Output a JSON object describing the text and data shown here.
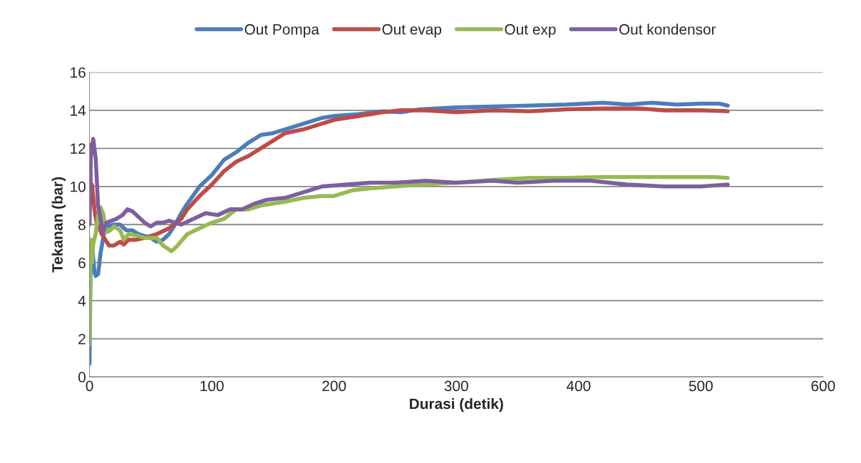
{
  "chart_data": {
    "type": "line",
    "xlabel": "Durasi (detik)",
    "ylabel": "Tekanan (bar)",
    "xlim": [
      0,
      600
    ],
    "xticks": [
      0,
      100,
      200,
      300,
      400,
      500,
      600
    ],
    "ylim": [
      0,
      16
    ],
    "yticks": [
      0,
      2,
      4,
      6,
      8,
      10,
      12,
      14,
      16
    ],
    "grid": "y",
    "legend": "top",
    "marker": "none",
    "line_style": "solid",
    "series": [
      {
        "name": "Out Pompa",
        "color": "#4a7ebb",
        "x": [
          0,
          1,
          2,
          4,
          5,
          7,
          9,
          12,
          15,
          20,
          25,
          30,
          35,
          40,
          45,
          50,
          55,
          60,
          65,
          70,
          75,
          80,
          90,
          100,
          110,
          120,
          130,
          140,
          150,
          160,
          175,
          190,
          200,
          220,
          240,
          255,
          270,
          300,
          330,
          360,
          390,
          420,
          440,
          460,
          480,
          500,
          515,
          522
        ],
        "values": [
          0.7,
          6.7,
          7.0,
          5.5,
          5.3,
          5.4,
          6.5,
          7.6,
          7.9,
          8.0,
          8.0,
          7.7,
          7.7,
          7.5,
          7.4,
          7.3,
          7.1,
          7.2,
          7.5,
          8.0,
          8.6,
          9.1,
          10.0,
          10.6,
          11.4,
          11.8,
          12.3,
          12.7,
          12.8,
          13.0,
          13.3,
          13.6,
          13.7,
          13.8,
          13.95,
          13.9,
          14.05,
          14.15,
          14.2,
          14.25,
          14.3,
          14.4,
          14.3,
          14.4,
          14.3,
          14.35,
          14.35,
          14.25
        ]
      },
      {
        "name": "Out evap",
        "color": "#be4b48",
        "x": [
          0,
          1,
          2,
          4,
          6,
          8,
          10,
          13,
          16,
          20,
          25,
          28,
          32,
          38,
          45,
          55,
          65,
          75,
          80,
          90,
          100,
          110,
          120,
          130,
          140,
          150,
          160,
          175,
          190,
          200,
          220,
          240,
          255,
          275,
          300,
          330,
          360,
          390,
          420,
          450,
          470,
          500,
          522
        ],
        "values": [
          12.2,
          10.0,
          10.1,
          8.8,
          8.0,
          7.8,
          7.5,
          7.2,
          6.9,
          6.9,
          7.1,
          6.95,
          7.2,
          7.2,
          7.3,
          7.5,
          7.8,
          8.3,
          8.8,
          9.5,
          10.1,
          10.8,
          11.3,
          11.6,
          12.0,
          12.4,
          12.8,
          13.0,
          13.3,
          13.5,
          13.7,
          13.9,
          14.0,
          14.0,
          13.9,
          14.0,
          13.95,
          14.05,
          14.1,
          14.1,
          14.0,
          14.0,
          13.95
        ]
      },
      {
        "name": "Out exp",
        "color": "#98b954",
        "x": [
          0,
          1,
          2,
          3,
          5,
          7,
          9,
          11,
          14,
          17,
          20,
          25,
          28,
          32,
          40,
          45,
          55,
          60,
          67,
          72,
          80,
          90,
          100,
          110,
          120,
          130,
          140,
          150,
          160,
          175,
          190,
          200,
          215,
          230,
          250,
          270,
          300,
          330,
          360,
          390,
          420,
          450,
          480,
          510,
          522
        ],
        "values": [
          1.7,
          7.2,
          6.0,
          7.0,
          7.5,
          8.5,
          8.9,
          8.6,
          7.6,
          7.7,
          7.9,
          7.7,
          7.2,
          7.5,
          7.4,
          7.3,
          7.3,
          6.9,
          6.6,
          6.9,
          7.5,
          7.8,
          8.1,
          8.3,
          8.8,
          8.8,
          9.0,
          9.1,
          9.2,
          9.4,
          9.5,
          9.5,
          9.8,
          9.9,
          10.0,
          10.1,
          10.2,
          10.35,
          10.45,
          10.45,
          10.5,
          10.5,
          10.5,
          10.5,
          10.45
        ]
      },
      {
        "name": "Out kondensor",
        "color": "#7d5fa0",
        "x": [
          0,
          1,
          3,
          5,
          7,
          9,
          11,
          14,
          18,
          22,
          27,
          31,
          35,
          40,
          45,
          50,
          55,
          60,
          65,
          75,
          85,
          95,
          105,
          115,
          125,
          135,
          145,
          160,
          175,
          190,
          210,
          230,
          250,
          275,
          300,
          330,
          350,
          380,
          410,
          440,
          470,
          500,
          522
        ],
        "values": [
          8.0,
          11.5,
          12.5,
          11.5,
          9.0,
          8.3,
          7.6,
          8.1,
          8.2,
          8.3,
          8.5,
          8.8,
          8.7,
          8.4,
          8.1,
          7.9,
          8.1,
          8.1,
          8.2,
          8.0,
          8.3,
          8.6,
          8.5,
          8.8,
          8.8,
          9.1,
          9.3,
          9.4,
          9.7,
          10.0,
          10.1,
          10.2,
          10.2,
          10.3,
          10.2,
          10.3,
          10.2,
          10.3,
          10.3,
          10.1,
          10.0,
          10.0,
          10.1
        ]
      }
    ]
  }
}
